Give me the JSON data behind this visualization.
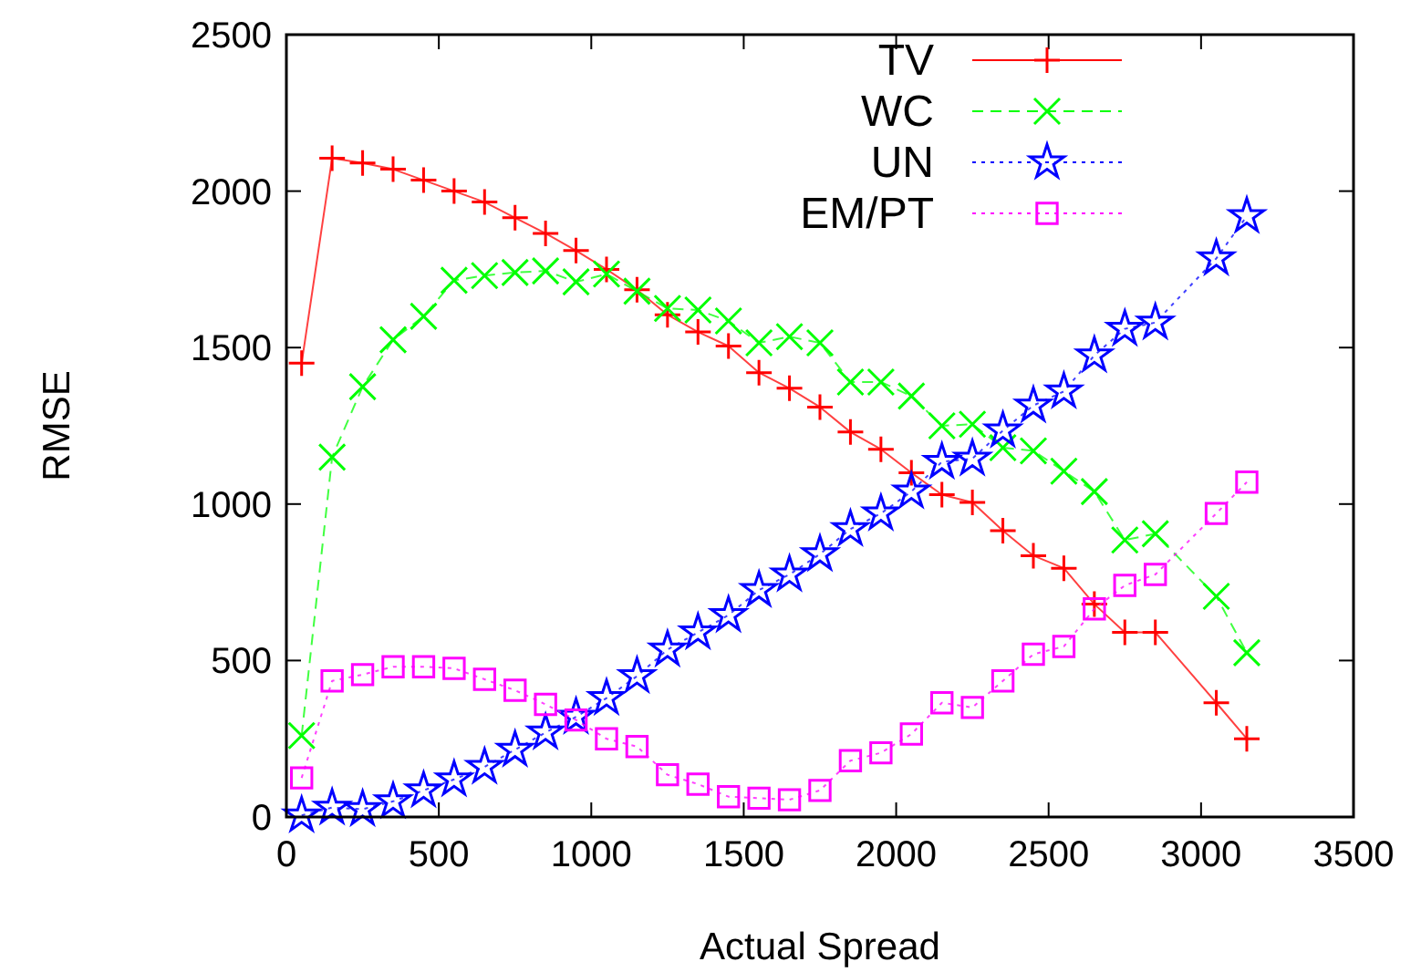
{
  "chart_data": {
    "type": "line",
    "xlabel": "Actual Spread",
    "ylabel": "RMSE",
    "x": [
      50,
      150,
      250,
      350,
      450,
      550,
      650,
      750,
      850,
      950,
      1050,
      1150,
      1250,
      1350,
      1450,
      1550,
      1650,
      1750,
      1850,
      1950,
      2050,
      2150,
      2250,
      2350,
      2450,
      2550,
      2650,
      2750,
      2850,
      3050,
      3150
    ],
    "series": [
      {
        "name": "TV",
        "color": "#ff0000",
        "marker": "plus",
        "line_style": "solid",
        "values": [
          1450,
          2105,
          2090,
          2070,
          2035,
          2000,
          1965,
          1915,
          1865,
          1810,
          1750,
          1685,
          1605,
          1550,
          1505,
          1420,
          1370,
          1310,
          1230,
          1175,
          1100,
          1030,
          1005,
          915,
          835,
          795,
          680,
          590,
          590,
          365,
          250
        ]
      },
      {
        "name": "WC",
        "color": "#00ff00",
        "marker": "cross",
        "line_style": "dashed",
        "values": [
          260,
          1150,
          1375,
          1525,
          1600,
          1715,
          1730,
          1740,
          1745,
          1710,
          1735,
          1680,
          1625,
          1620,
          1585,
          1515,
          1535,
          1515,
          1390,
          1390,
          1345,
          1250,
          1255,
          1180,
          1170,
          1105,
          1040,
          885,
          905,
          705,
          525
        ]
      },
      {
        "name": "UN",
        "color": "#0000ff",
        "marker": "star",
        "line_style": "dotted",
        "values": [
          5,
          30,
          25,
          50,
          85,
          120,
          160,
          215,
          270,
          320,
          380,
          450,
          535,
          590,
          645,
          725,
          775,
          840,
          920,
          970,
          1040,
          1135,
          1145,
          1235,
          1315,
          1360,
          1475,
          1560,
          1580,
          1785,
          1920
        ]
      },
      {
        "name": "EM/PT",
        "color": "#ff00ff",
        "marker": "square",
        "line_style": "dotted",
        "values": [
          125,
          435,
          455,
          480,
          480,
          475,
          440,
          405,
          360,
          310,
          250,
          225,
          135,
          105,
          65,
          60,
          55,
          85,
          180,
          205,
          265,
          365,
          350,
          435,
          520,
          545,
          665,
          740,
          775,
          970,
          1070
        ]
      }
    ],
    "xlim": [
      0,
      3500
    ],
    "xticks": [
      0,
      500,
      1000,
      1500,
      2000,
      2500,
      3000,
      3500
    ],
    "ylim": [
      0,
      2500
    ],
    "yticks": [
      0,
      500,
      1000,
      1500,
      2000,
      2500
    ],
    "grid": false,
    "legend": "top right"
  }
}
